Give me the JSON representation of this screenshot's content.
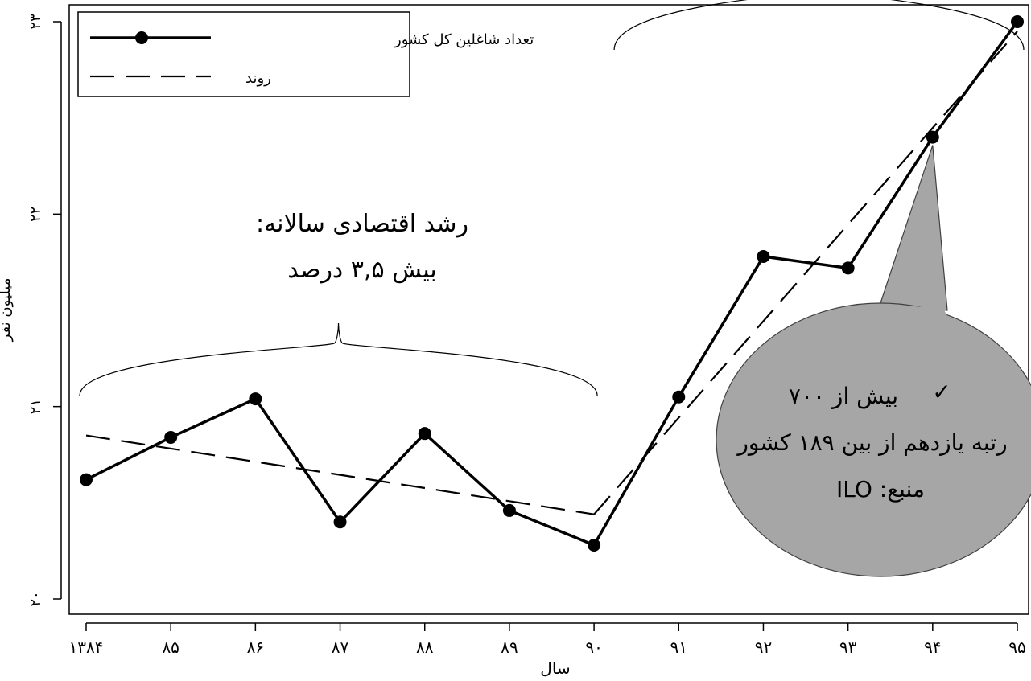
{
  "chart_data": {
    "type": "line",
    "xlabel": "سال",
    "ylabel": "میلیون نفر",
    "x": [
      1384,
      1385,
      1386,
      1387,
      1388,
      1389,
      1390,
      1391,
      1392,
      1393,
      1394,
      1395
    ],
    "x_tick_labels": [
      "۱۳۸۴",
      "۸۵",
      "۸۶",
      "۸۷",
      "۸۸",
      "۸۹",
      "۹۰",
      "۹۱",
      "۹۲",
      "۹۳",
      "۹۴",
      "۹۵"
    ],
    "y_ticks": [
      20,
      21,
      22,
      23
    ],
    "y_tick_labels": [
      "۲۰",
      "۲۱",
      "۲۲",
      "۲۳"
    ],
    "ylim": [
      19.8,
      23.1
    ],
    "xlim": [
      1383.9,
      1395.1
    ],
    "series": [
      {
        "name": "تعداد شاغلین کل کشور",
        "style": "solid-markers",
        "color": "#000000",
        "values": [
          20.62,
          20.84,
          21.04,
          20.4,
          20.86,
          20.46,
          20.28,
          21.05,
          21.78,
          21.72,
          22.4,
          23.0
        ]
      },
      {
        "name": "روند",
        "style": "dashed",
        "color": "#000000",
        "segments": [
          {
            "x": [
              1384,
              1390
            ],
            "y": [
              20.85,
              20.44
            ]
          },
          {
            "x": [
              1390,
              1395
            ],
            "y": [
              20.44,
              22.95
            ]
          }
        ]
      }
    ],
    "legend": {
      "position": "top-left",
      "entries": [
        "تعداد شاغلین کل کشور",
        "روند"
      ]
    },
    "annotations": {
      "growth_line1": "رشد اقتصادی سالانه:",
      "growth_line2": "بیش ۳,۵ درصد",
      "growth_range": [
        1384,
        1390
      ],
      "upper_range": [
        1390,
        1395
      ],
      "callout": {
        "check": "✓",
        "line1": "بیش از ۷۰۰",
        "line2": "رتبه یازدهم از بین ۱۸۹ کشور",
        "line3": "منبع: ILO",
        "fill": "#a6a6a6",
        "points_to_x": 1394
      }
    }
  }
}
